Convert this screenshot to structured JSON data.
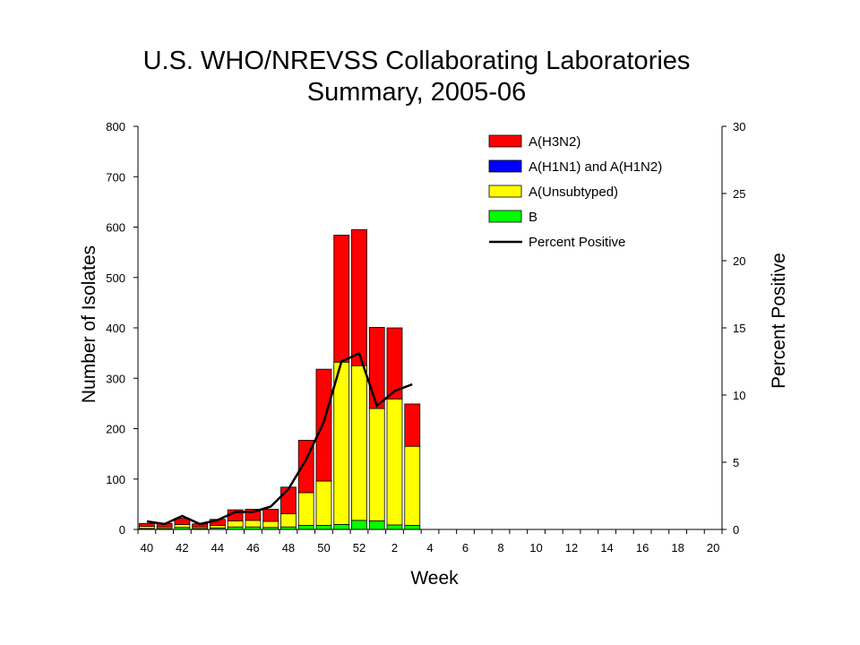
{
  "chart_data": {
    "type": "bar",
    "stacked": true,
    "title_line1": "U.S. WHO/NREVSS Collaborating Laboratories",
    "title_line2": "Summary, 2005-06",
    "xlabel": "Week",
    "ylabel": "Number of Isolates",
    "y2label": "Percent Positive",
    "ylim": [
      0,
      800
    ],
    "y2lim": [
      0,
      30
    ],
    "yticks": [
      "0",
      "100",
      "200",
      "300",
      "400",
      "500",
      "600",
      "700",
      "800"
    ],
    "y2ticks": [
      "0",
      "5",
      "10",
      "15",
      "20",
      "25",
      "30"
    ],
    "categories": [
      "40",
      "41",
      "42",
      "43",
      "44",
      "45",
      "46",
      "47",
      "48",
      "49",
      "50",
      "51",
      "52",
      "1",
      "2",
      "3",
      "4",
      "5",
      "6",
      "7",
      "8",
      "9",
      "10",
      "11",
      "12",
      "13",
      "14",
      "15",
      "16",
      "17",
      "18",
      "19",
      "20"
    ],
    "xtick_labels": [
      "40",
      "42",
      "44",
      "46",
      "48",
      "50",
      "52",
      "2",
      "4",
      "6",
      "8",
      "10",
      "12",
      "14",
      "16",
      "18",
      "20"
    ],
    "series": [
      {
        "name": "B",
        "color": "#00ff00",
        "values": [
          2,
          2,
          4,
          2,
          3,
          5,
          5,
          4,
          5,
          8,
          8,
          10,
          18,
          17,
          9,
          8,
          null,
          null,
          null,
          null,
          null,
          null,
          null,
          null,
          null,
          null,
          null,
          null,
          null,
          null,
          null,
          null,
          null
        ]
      },
      {
        "name": "A(Unsubtyped)",
        "color": "#ffff00",
        "values": [
          4,
          3,
          6,
          3,
          5,
          12,
          13,
          12,
          26,
          65,
          88,
          322,
          307,
          223,
          250,
          157,
          null,
          null,
          null,
          null,
          null,
          null,
          null,
          null,
          null,
          null,
          null,
          null,
          null,
          null,
          null,
          null,
          null
        ]
      },
      {
        "name": "A(H1N1) and A(H1N2)",
        "color": "#0000ff",
        "values": [
          0,
          0,
          0,
          0,
          0,
          0,
          0,
          0,
          0,
          0,
          0,
          0,
          0,
          0,
          0,
          0,
          null,
          null,
          null,
          null,
          null,
          null,
          null,
          null,
          null,
          null,
          null,
          null,
          null,
          null,
          null,
          null,
          null
        ]
      },
      {
        "name": "A(H3N2)",
        "color": "#ff0000",
        "values": [
          6,
          7,
          12,
          6,
          12,
          22,
          22,
          24,
          53,
          104,
          222,
          252,
          270,
          161,
          141,
          84,
          null,
          null,
          null,
          null,
          null,
          null,
          null,
          null,
          null,
          null,
          null,
          null,
          null,
          null,
          null,
          null,
          null
        ]
      }
    ],
    "line": {
      "name": "Percent Positive",
      "color": "#000000",
      "values": [
        0.6,
        0.4,
        1.0,
        0.4,
        0.7,
        1.3,
        1.3,
        1.7,
        3.0,
        5.2,
        8.0,
        12.5,
        13.1,
        9.2,
        10.3,
        10.8,
        null,
        null,
        null,
        null,
        null,
        null,
        null,
        null,
        null,
        null,
        null,
        null,
        null,
        null,
        null,
        null,
        null
      ]
    },
    "legend_order": [
      "A(H3N2)",
      "A(H1N1) and A(H1N2)",
      "A(Unsubtyped)",
      "B",
      "Percent Positive"
    ],
    "legend_position": "top-right",
    "grid": false
  }
}
